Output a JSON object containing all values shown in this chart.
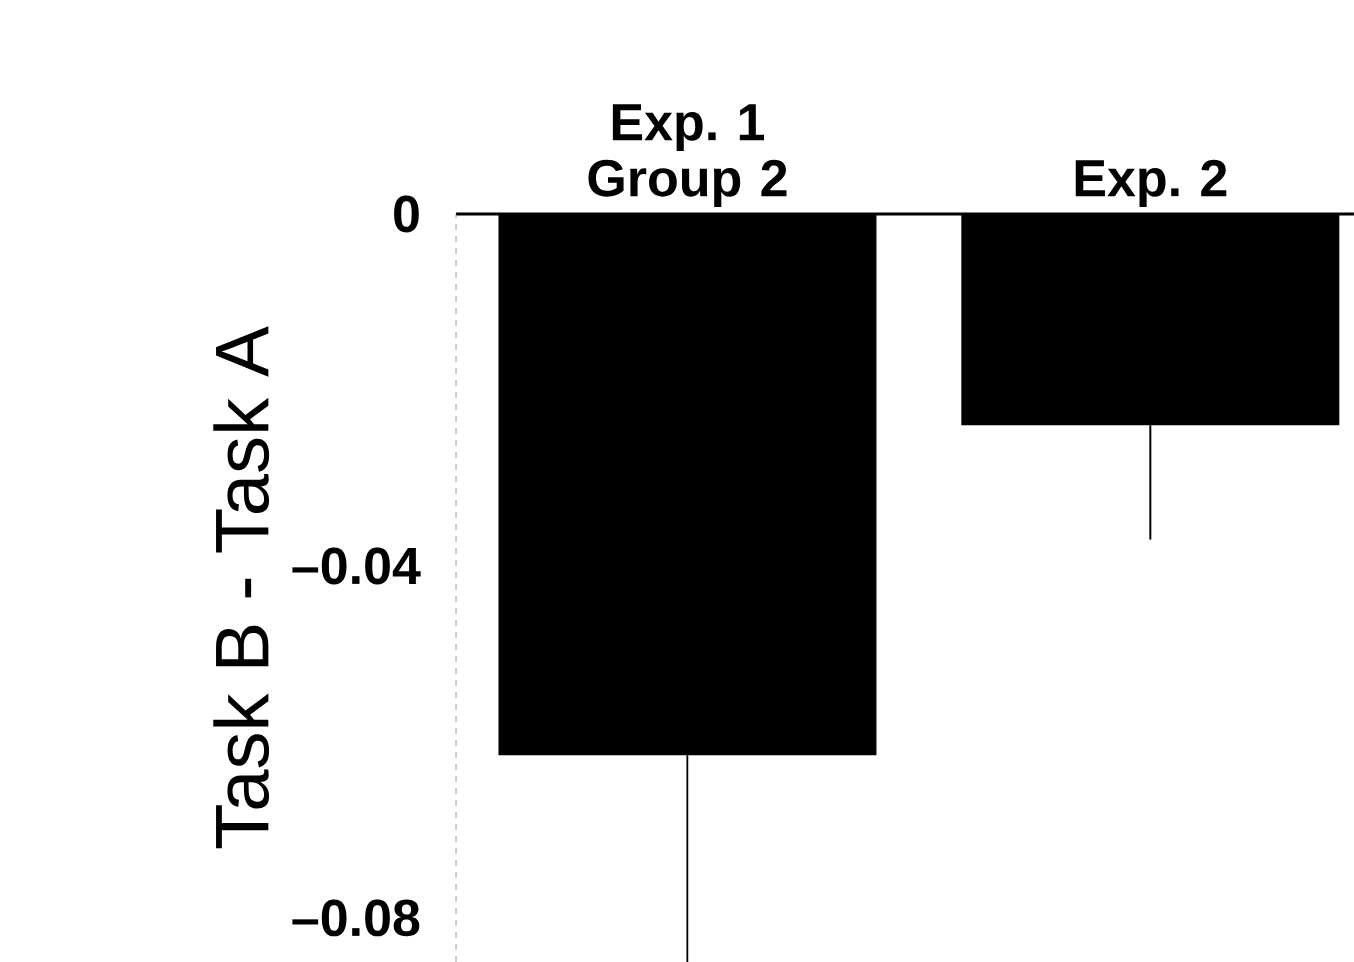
{
  "chart_data": {
    "type": "bar",
    "ylabel": "Task B - Task A",
    "categories": [
      "Exp. 1 Group 2",
      "Exp. 2"
    ],
    "values": [
      -0.0615,
      -0.024
    ],
    "errors": [
      [
        -0.085,
        -0.0615
      ],
      [
        -0.037,
        -0.024
      ]
    ],
    "color": "#000000",
    "ylim": [
      -0.085,
      0
    ],
    "yticks": [
      0,
      {
        "value": -0.04,
        "label": "–0.04"
      },
      {
        "value": -0.08,
        "label": "–0.08"
      }
    ]
  }
}
